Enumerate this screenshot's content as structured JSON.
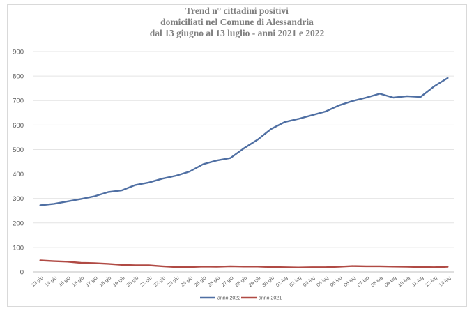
{
  "chart_data": {
    "type": "line",
    "title_lines": [
      "Trend n° cittadini positivi",
      "domiciliati nel Comune di Alessandria",
      "dal 13 giugno al 13 luglio - anni 2021 e 2022"
    ],
    "xlabel": "",
    "ylabel": "",
    "ylim": [
      0,
      900
    ],
    "yticks": [
      0,
      100,
      200,
      300,
      400,
      500,
      600,
      700,
      800,
      900
    ],
    "grid": true,
    "legend_position": "bottom",
    "categories": [
      "13-giu",
      "14-giu",
      "15-giu",
      "16-giu",
      "17-giu",
      "18-giu",
      "19-giu",
      "20-giu",
      "21-giu",
      "22-giu",
      "23-giu",
      "24-giu",
      "25-giu",
      "26-giu",
      "27-giu",
      "28-giu",
      "29-giu",
      "30-giu",
      "01-lug",
      "02-lug",
      "03-lug",
      "04-lug",
      "05-lug",
      "06-lug",
      "07-lug",
      "08-lug",
      "09-lug",
      "10-lug",
      "11-lug",
      "12-lug",
      "13-lug"
    ],
    "series": [
      {
        "name": "anno 2022",
        "color": "#4f6fa3",
        "values": [
          272,
          278,
          288,
          298,
          309,
          326,
          333,
          355,
          365,
          381,
          393,
          410,
          440,
          455,
          465,
          505,
          540,
          584,
          612,
          625,
          640,
          655,
          680,
          698,
          712,
          728,
          712,
          718,
          715,
          758,
          792
        ]
      },
      {
        "name": "anno 2021",
        "color": "#b04a44",
        "values": [
          47,
          44,
          42,
          37,
          36,
          33,
          29,
          27,
          27,
          23,
          20,
          20,
          22,
          21,
          23,
          22,
          22,
          20,
          19,
          18,
          19,
          19,
          21,
          24,
          23,
          23,
          22,
          21,
          20,
          19,
          21
        ]
      }
    ]
  }
}
